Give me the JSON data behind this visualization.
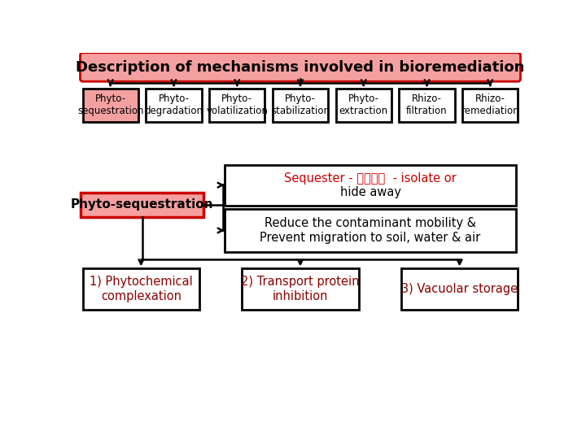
{
  "title": "Description of mechanisms involved in bioremediation",
  "title_bg": "#f5a0a0",
  "title_border": "#cc0000",
  "top_boxes": [
    {
      "text": "Phyto-\nsequestration",
      "bg": "#f5a0a0",
      "border": "#000000"
    },
    {
      "text": "Phyto-\ndegradation",
      "bg": "#ffffff",
      "border": "#000000"
    },
    {
      "text": "Phyto-\nvolatilization",
      "bg": "#ffffff",
      "border": "#000000"
    },
    {
      "text": "Phyto-\nstabilization",
      "bg": "#ffffff",
      "border": "#000000"
    },
    {
      "text": "Phyto-\nextraction",
      "bg": "#ffffff",
      "border": "#000000"
    },
    {
      "text": "Rhizo-\nfiltration",
      "bg": "#ffffff",
      "border": "#000000"
    },
    {
      "text": "Rhizo-\nremediation",
      "bg": "#ffffff",
      "border": "#000000"
    }
  ],
  "phyto_seq_label": "Phyto-sequestration",
  "phyto_seq_bg": "#f5a0a0",
  "phyto_seq_border": "#cc0000",
  "sequester_red": "Sequester - 은퇴하다  - isolate or",
  "sequester_black": "hide away",
  "reduce_text": "Reduce the contaminant mobility &\nPrevent migration to soil, water & air",
  "bottom_boxes": [
    {
      "text": "1) Phytochemical\ncomplexation",
      "text_color": "#8b0000"
    },
    {
      "text": "2) Transport protein\ninhibition",
      "text_color": "#8b0000"
    },
    {
      "text": "3) Vacuolar storage",
      "text_color": "#8b0000"
    }
  ],
  "bg_color": "#ffffff"
}
